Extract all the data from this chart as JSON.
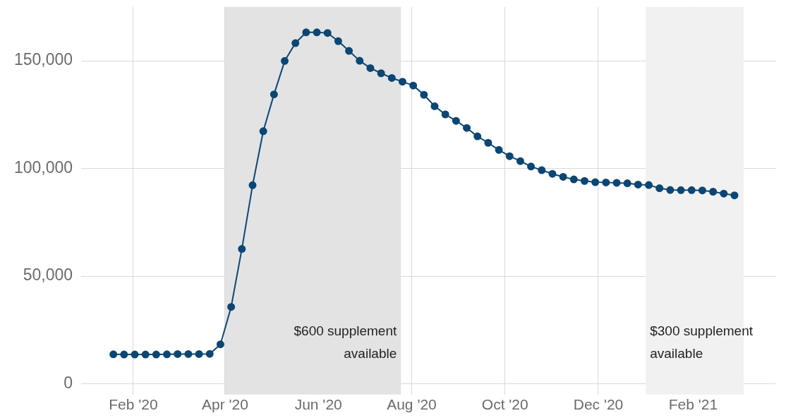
{
  "chart_data": {
    "type": "line",
    "x": [
      "2020-01-19",
      "2020-01-26",
      "2020-02-02",
      "2020-02-09",
      "2020-02-16",
      "2020-02-23",
      "2020-03-01",
      "2020-03-08",
      "2020-03-15",
      "2020-03-22",
      "2020-03-29",
      "2020-04-05",
      "2020-04-12",
      "2020-04-19",
      "2020-04-26",
      "2020-05-03",
      "2020-05-10",
      "2020-05-17",
      "2020-05-24",
      "2020-05-31",
      "2020-06-07",
      "2020-06-14",
      "2020-06-21",
      "2020-06-28",
      "2020-07-05",
      "2020-07-12",
      "2020-07-19",
      "2020-07-26",
      "2020-08-02",
      "2020-08-09",
      "2020-08-16",
      "2020-08-23",
      "2020-08-30",
      "2020-09-06",
      "2020-09-13",
      "2020-09-20",
      "2020-09-27",
      "2020-10-04",
      "2020-10-11",
      "2020-10-18",
      "2020-10-25",
      "2020-11-01",
      "2020-11-08",
      "2020-11-15",
      "2020-11-22",
      "2020-11-29",
      "2020-12-06",
      "2020-12-13",
      "2020-12-20",
      "2020-12-27",
      "2021-01-03",
      "2021-01-10",
      "2021-01-17",
      "2021-01-24",
      "2021-01-31",
      "2021-02-07",
      "2021-02-14",
      "2021-02-21",
      "2021-02-28"
    ],
    "series": [
      {
        "color": "#0b4674",
        "values": [
          13700,
          13600,
          13600,
          13600,
          13600,
          13700,
          13800,
          13800,
          13800,
          13900,
          18300,
          35700,
          62600,
          92200,
          117300,
          134400,
          149900,
          158200,
          163200,
          163200,
          162900,
          159100,
          154600,
          150000,
          146600,
          144200,
          142000,
          140300,
          138500,
          134200,
          128900,
          125100,
          122100,
          118800,
          114900,
          111900,
          108600,
          105700,
          103400,
          100900,
          99200,
          97500,
          96100,
          94900,
          94200,
          93600,
          93500,
          93300,
          93100,
          92500,
          92300,
          90800,
          90000,
          89900,
          89900,
          89800,
          89200,
          88300,
          87500
        ]
      }
    ],
    "xlim": [
      "2019-12-29",
      "2021-03-27"
    ],
    "xticks": [
      {
        "value": "2020-02-01",
        "label": "Feb '20"
      },
      {
        "value": "2020-04-01",
        "label": "Apr '20"
      },
      {
        "value": "2020-06-01",
        "label": "Jun '20"
      },
      {
        "value": "2020-08-01",
        "label": "Aug '20"
      },
      {
        "value": "2020-10-01",
        "label": "Oct '20"
      },
      {
        "value": "2020-12-01",
        "label": "Dec '20"
      },
      {
        "value": "2021-02-01",
        "label": "Feb '21"
      }
    ],
    "ylim": [
      -5000,
      175000
    ],
    "yticks": [
      {
        "value": 0,
        "label": "0"
      },
      {
        "value": 50000,
        "label": "50,000"
      },
      {
        "value": 100000,
        "label": "100,000"
      },
      {
        "value": 150000,
        "label": "150,000"
      }
    ],
    "bands": [
      {
        "axis": "x",
        "from": "2020-04-01",
        "to": "2020-07-25",
        "label": "$600 supplement available",
        "color": "#e3e3e3"
      },
      {
        "axis": "x",
        "from": "2021-01-01",
        "to": "2021-03-06",
        "label": "$300 supplement available",
        "color": "#f1f1f1"
      }
    ],
    "grid": true,
    "marker": "circle",
    "line_style": "solid",
    "legend": false
  }
}
